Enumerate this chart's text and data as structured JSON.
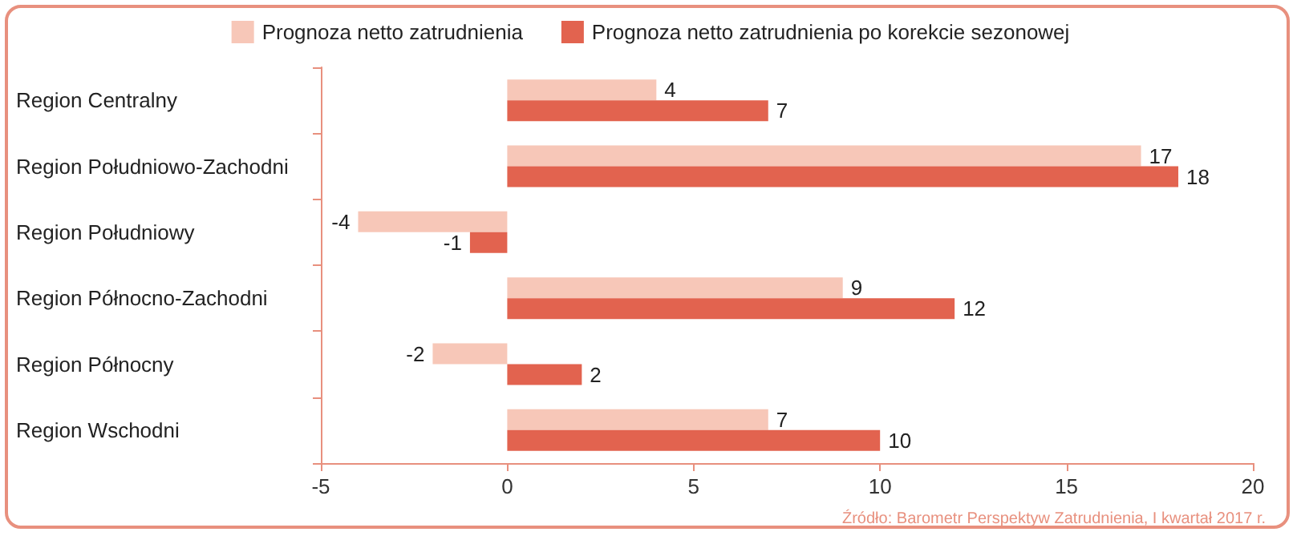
{
  "chart_data": {
    "type": "bar",
    "orientation": "horizontal",
    "categories": [
      "Region Centralny",
      "Region Południowo-Zachodni",
      "Region Południowy",
      "Region Północno-Zachodni",
      "Region Północny",
      "Region Wschodni"
    ],
    "series": [
      {
        "name": "Prognoza netto zatrudnienia",
        "color": "#f7c7b8",
        "values": [
          4,
          17,
          -4,
          9,
          -2,
          7
        ]
      },
      {
        "name": "Prognoza netto zatrudnienia po korekcie sezonowej",
        "color": "#e2634f",
        "values": [
          7,
          18,
          -1,
          12,
          2,
          10
        ]
      }
    ],
    "xlim": [
      -5,
      20
    ],
    "xticks": [
      -5,
      0,
      5,
      10,
      15,
      20
    ],
    "data_labels": true,
    "legend": "top",
    "grid": false,
    "annotations": [
      "Źródło: Barometr Perspektyw Zatrudnienia, I kwartał 2017 r."
    ]
  }
}
